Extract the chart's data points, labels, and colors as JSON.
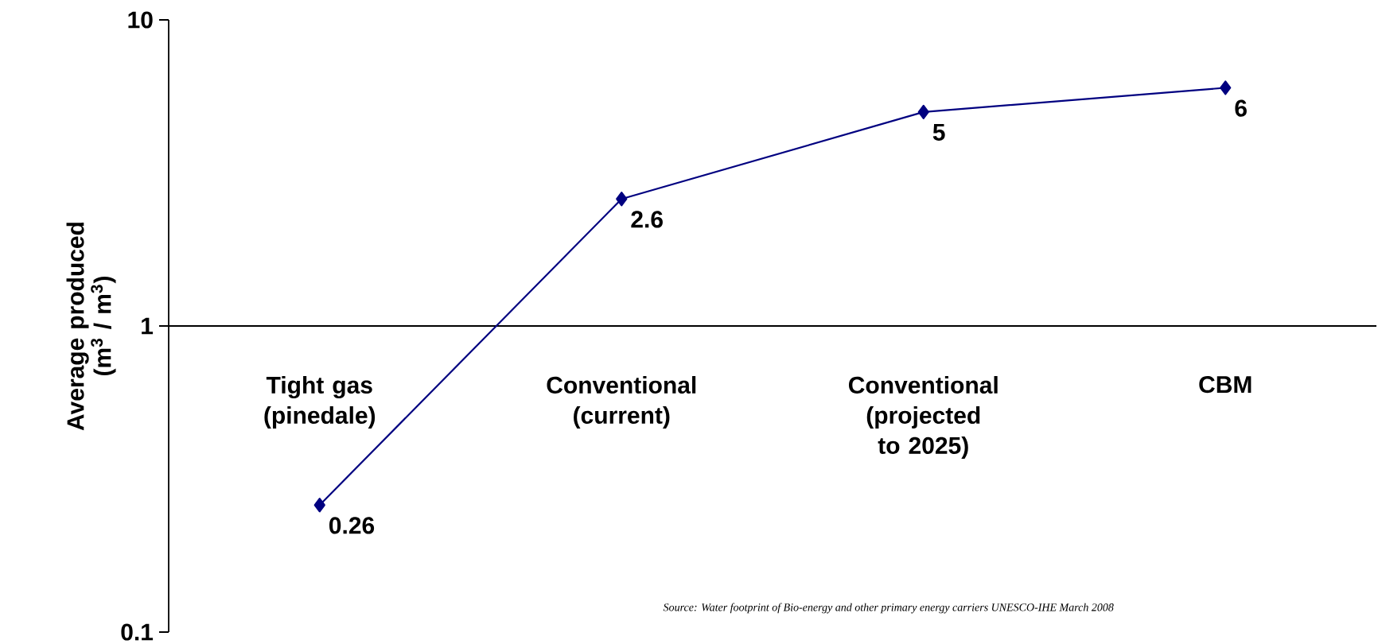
{
  "chart_data": {
    "type": "line",
    "categories": [
      "Tight gas (pinedale)",
      "Conventional (current)",
      "Conventional (projected to 2025)",
      "CBM"
    ],
    "values": [
      0.26,
      2.6,
      5,
      6
    ],
    "color": "#000080",
    "marker": "diamond",
    "data_labels": true,
    "log": true,
    "ylim": [
      0.1,
      10
    ],
    "yticks": [
      0.1,
      1,
      10
    ],
    "ylabel": "Average produced (m$^{3}$ / m$^{3}$)",
    "annotations": [
      "Source: Water footprint of Bio-energy and other primary energy carriers UNESCO-IHE March 2008"
    ]
  }
}
